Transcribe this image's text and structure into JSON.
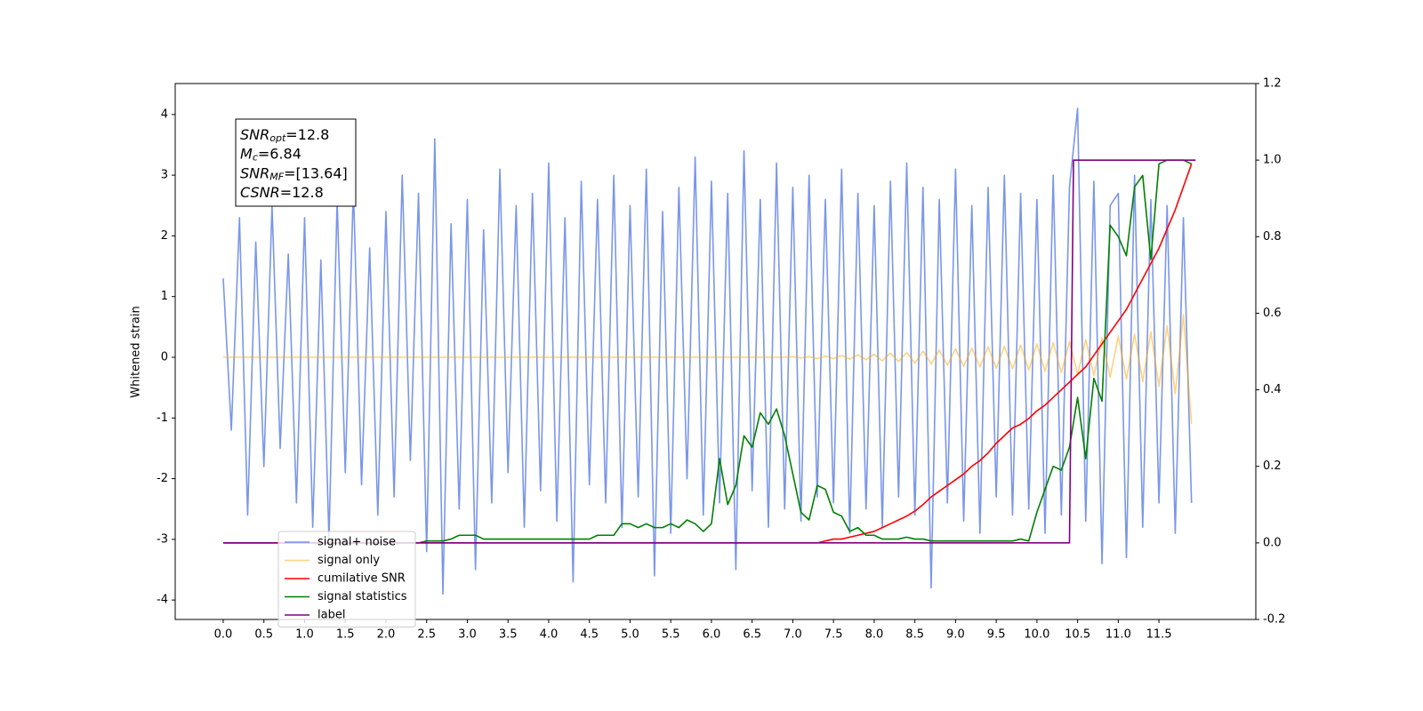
{
  "chart_data": {
    "type": "line",
    "ylabel": "Whitened strain",
    "xlim": [
      -0.59,
      12.69
    ],
    "ylim": [
      -4.32,
      4.51
    ],
    "y2lim": [
      -0.2,
      1.2
    ],
    "xticks": [
      {
        "value": 0,
        "label": "0.0"
      },
      0.5,
      {
        "value": 1,
        "label": "1.0"
      },
      1.5,
      {
        "value": 2,
        "label": "2.0"
      },
      2.5,
      {
        "value": 3,
        "label": "3.0"
      },
      3.5,
      {
        "value": 4,
        "label": "4.0"
      },
      4.5,
      {
        "value": 5,
        "label": "5.0"
      },
      5.5,
      {
        "value": 6,
        "label": "6.0"
      },
      6.5,
      {
        "value": 7,
        "label": "7.0"
      },
      7.5,
      {
        "value": 8,
        "label": "8.0"
      },
      8.5,
      {
        "value": 9,
        "label": "9.0"
      },
      9.5,
      {
        "value": 10,
        "label": "10.0"
      },
      10.5,
      {
        "value": 11,
        "label": "11.0"
      },
      11.5
    ],
    "yticks": [
      -4,
      -3,
      -2,
      -1,
      0,
      1,
      2,
      3,
      4
    ],
    "y2ticks": [
      -0.2,
      {
        "value": 0,
        "label": "0.0"
      },
      0.2,
      0.4,
      0.6,
      0.8,
      {
        "value": 1,
        "label": "1.0"
      },
      1.2
    ],
    "legend": "lower left",
    "annotation": [
      {
        "symbol": "SNR",
        "subscript": "opt",
        "text": "=12.8"
      },
      {
        "symbol": "M",
        "subscript": "c",
        "text": "=6.84"
      },
      {
        "symbol": "SNR",
        "subscript": "MF",
        "text": "=[13.64]"
      },
      {
        "symbol": "CSNR",
        "text": "=12.8"
      }
    ],
    "x": [
      0,
      0.1,
      0.2,
      0.3,
      0.4,
      0.5,
      0.6,
      0.7,
      0.8,
      0.9,
      1,
      1.1,
      1.2,
      1.3,
      1.4,
      1.5,
      1.6,
      1.7,
      1.8,
      1.9,
      2,
      2.1,
      2.2,
      2.3,
      2.4,
      2.5,
      2.6,
      2.7,
      2.8,
      2.9,
      3,
      3.1,
      3.2,
      3.3,
      3.4,
      3.5,
      3.6,
      3.7,
      3.8,
      3.9,
      4,
      4.1,
      4.2,
      4.3,
      4.4,
      4.5,
      4.6,
      4.7,
      4.8,
      4.9,
      5,
      5.1,
      5.2,
      5.3,
      5.4,
      5.5,
      5.6,
      5.7,
      5.8,
      5.9,
      6,
      6.1,
      6.2,
      6.3,
      6.4,
      6.5,
      6.6,
      6.7,
      6.8,
      6.9,
      7,
      7.1,
      7.2,
      7.3,
      7.4,
      7.5,
      7.6,
      7.7,
      7.8,
      7.9,
      8,
      8.1,
      8.2,
      8.3,
      8.4,
      8.5,
      8.6,
      8.7,
      8.8,
      8.9,
      9,
      9.1,
      9.2,
      9.3,
      9.4,
      9.5,
      9.6,
      9.7,
      9.8,
      9.9,
      10,
      10.1,
      10.2,
      10.3,
      10.4,
      10.5,
      10.6,
      10.7,
      10.8,
      10.9,
      11,
      11.1,
      11.2,
      11.3,
      11.4,
      11.5,
      11.6,
      11.7,
      11.8,
      11.9
    ],
    "series": [
      {
        "name": "signal+ noise",
        "color": "#4169e1",
        "alpha": 0.7,
        "axis": "y",
        "values": [
          1.3,
          -1.2,
          2.3,
          -2.6,
          1.9,
          -1.8,
          2.5,
          -1.5,
          1.7,
          -2.4,
          2.3,
          -2.8,
          1.6,
          -3.0,
          2.6,
          -1.9,
          2.8,
          -2.1,
          1.8,
          -2.6,
          2.4,
          -2.3,
          3.0,
          -1.7,
          2.7,
          -3.2,
          3.6,
          -3.9,
          2.2,
          -2.5,
          2.6,
          -3.5,
          2.1,
          -2.4,
          3.1,
          -1.9,
          2.5,
          -2.8,
          2.7,
          -2.2,
          3.2,
          -2.7,
          2.3,
          -3.7,
          2.9,
          -2.1,
          2.6,
          -2.4,
          3.0,
          -2.8,
          2.5,
          -2.3,
          3.1,
          -3.6,
          2.4,
          -2.9,
          2.8,
          -2.0,
          3.3,
          -2.6,
          2.9,
          -2.4,
          2.7,
          -3.5,
          3.4,
          -2.2,
          2.6,
          -2.8,
          3.2,
          -2.5,
          2.8,
          -2.7,
          3.0,
          -2.3,
          2.6,
          -2.4,
          3.1,
          -2.9,
          2.7,
          -2.5,
          2.5,
          -2.8,
          2.9,
          -2.3,
          3.2,
          -2.6,
          2.8,
          -3.8,
          2.6,
          -2.4,
          3.1,
          -2.7,
          2.5,
          -2.9,
          2.8,
          -2.3,
          3.0,
          -2.6,
          2.7,
          -2.5,
          2.6,
          -2.9,
          3.0,
          -2.6,
          2.8,
          4.1,
          -2.7,
          2.9,
          -3.4,
          2.5,
          2.7,
          -3.3,
          3.0,
          -2.8,
          2.6,
          -2.4,
          2.5,
          -2.9,
          2.3,
          -2.4
        ]
      },
      {
        "name": "signal only",
        "color": "#ffa500",
        "alpha": 0.5,
        "axis": "y",
        "values": [
          0,
          0,
          0,
          0,
          0,
          0,
          0,
          0,
          0,
          0,
          0,
          0,
          0,
          0,
          0,
          0,
          0,
          0,
          0,
          0,
          0,
          0,
          0,
          0,
          0,
          0,
          0,
          0,
          0,
          0,
          0,
          0,
          0,
          0,
          0,
          0,
          0,
          0,
          0,
          0,
          0,
          0,
          0,
          0,
          0,
          0,
          0,
          0,
          0,
          0,
          0,
          0,
          0,
          0,
          0,
          0,
          0,
          0,
          0,
          0,
          0,
          0,
          0,
          0,
          0,
          0,
          0,
          0,
          0,
          0,
          0.01,
          -0.01,
          0.01,
          -0.02,
          0.02,
          -0.02,
          0.03,
          -0.03,
          0.04,
          -0.04,
          0.05,
          -0.06,
          0.07,
          -0.07,
          0.08,
          -0.1,
          0.1,
          -0.11,
          0.12,
          -0.13,
          0.14,
          -0.15,
          0.15,
          -0.16,
          0.17,
          -0.18,
          0.18,
          -0.19,
          0.2,
          -0.21,
          0.22,
          -0.23,
          0.24,
          -0.25,
          0.26,
          -0.28,
          0.29,
          -0.3,
          0.32,
          -0.33,
          0.35,
          -0.36,
          0.38,
          -0.4,
          0.42,
          -0.48,
          0.52,
          -0.6,
          0.7,
          -1.1
        ]
      },
      {
        "name": "cumilative SNR",
        "color": "#ff0000",
        "axis": "y2",
        "values": [
          0,
          0,
          0,
          0,
          0,
          0,
          0,
          0,
          0,
          0,
          0,
          0,
          0,
          0,
          0,
          0,
          0,
          0,
          0,
          0,
          0,
          0,
          0,
          0,
          0,
          0,
          0,
          0,
          0,
          0,
          0,
          0,
          0,
          0,
          0,
          0,
          0,
          0,
          0,
          0,
          0,
          0,
          0,
          0,
          0,
          0,
          0,
          0,
          0,
          0,
          0,
          0,
          0,
          0,
          0,
          0,
          0,
          0,
          0,
          0,
          0,
          0,
          0,
          0,
          0,
          0,
          0,
          0,
          0,
          0,
          0,
          0,
          0,
          0,
          0.005,
          0.01,
          0.01,
          0.015,
          0.02,
          0.025,
          0.03,
          0.04,
          0.05,
          0.06,
          0.07,
          0.083,
          0.1,
          0.12,
          0.135,
          0.15,
          0.165,
          0.18,
          0.2,
          0.215,
          0.235,
          0.26,
          0.28,
          0.3,
          0.31,
          0.325,
          0.345,
          0.36,
          0.38,
          0.4,
          0.42,
          0.44,
          0.46,
          0.49,
          0.52,
          0.55,
          0.58,
          0.61,
          0.65,
          0.69,
          0.73,
          0.77,
          0.82,
          0.87,
          0.93,
          0.99
        ]
      },
      {
        "name": "signal statistics",
        "color": "#008000",
        "axis": "y2",
        "values": [
          0,
          0,
          0,
          0,
          0,
          0,
          0,
          0,
          0,
          0,
          0,
          0,
          0,
          0,
          0,
          0,
          0,
          0,
          0,
          0,
          0,
          0,
          0,
          0,
          0,
          0.005,
          0.005,
          0.005,
          0.01,
          0.02,
          0.02,
          0.02,
          0.01,
          0.01,
          0.01,
          0.01,
          0.01,
          0.01,
          0.01,
          0.01,
          0.01,
          0.01,
          0.01,
          0.01,
          0.01,
          0.01,
          0.02,
          0.02,
          0.02,
          0.05,
          0.05,
          0.04,
          0.05,
          0.04,
          0.04,
          0.05,
          0.04,
          0.06,
          0.05,
          0.03,
          0.05,
          0.22,
          0.1,
          0.15,
          0.28,
          0.25,
          0.34,
          0.31,
          0.35,
          0.28,
          0.18,
          0.08,
          0.06,
          0.15,
          0.14,
          0.08,
          0.07,
          0.03,
          0.04,
          0.02,
          0.02,
          0.01,
          0.01,
          0.01,
          0.015,
          0.01,
          0.01,
          0.005,
          0.005,
          0.005,
          0.005,
          0.005,
          0.005,
          0.005,
          0.005,
          0.005,
          0.005,
          0.005,
          0.01,
          0.005,
          0.08,
          0.14,
          0.2,
          0.19,
          0.25,
          0.38,
          0.22,
          0.43,
          0.37,
          0.83,
          0.8,
          0.75,
          0.93,
          0.96,
          0.74,
          0.99,
          1.0,
          1.0,
          1.0,
          0.99
        ]
      },
      {
        "name": "label",
        "color": "#800080",
        "axis": "y2",
        "x": [
          0,
          10.4,
          10.45,
          11.95
        ],
        "values": [
          0,
          0,
          1,
          1
        ]
      }
    ]
  }
}
